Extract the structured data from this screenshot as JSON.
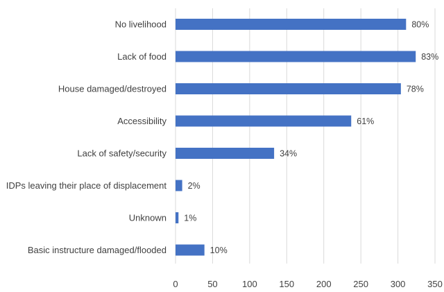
{
  "chart_data": {
    "type": "bar",
    "orientation": "horizontal",
    "title": "",
    "xlabel": "",
    "ylabel": "",
    "categories": [
      "No livelihood",
      "Lack of food",
      "House damaged/destroyed",
      "Accessibility",
      "Lack of safety/security",
      "IDPs leaving their place of displacement",
      "Unknown",
      "Basic instructure damaged/flooded"
    ],
    "values": [
      311,
      324,
      304,
      237,
      133,
      9,
      4,
      39
    ],
    "data_labels": [
      "80%",
      "83%",
      "78%",
      "61%",
      "34%",
      "2%",
      "1%",
      "10%"
    ],
    "xlim": [
      0,
      350
    ],
    "xticks": [
      0,
      50,
      100,
      150,
      200,
      250,
      300,
      350
    ],
    "bar_color": "#4472C4",
    "grid": "vertical",
    "grid_color": "#d9d9d9",
    "legend": "none"
  }
}
